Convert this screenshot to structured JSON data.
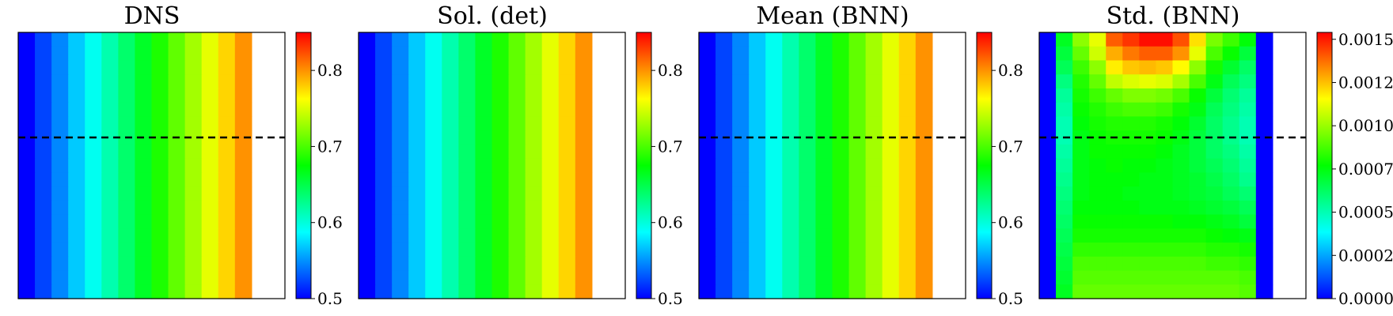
{
  "chart_data": [
    {
      "type": "heatmap",
      "title": "DNS",
      "colormap": "jet",
      "grid": {
        "rows": 19,
        "cols": 16,
        "filled_rows": 19,
        "filled_cols": 14
      },
      "columns_only": true,
      "column_values": [
        0.5,
        0.5231,
        0.5462,
        0.5692,
        0.5923,
        0.6154,
        0.6385,
        0.6615,
        0.6846,
        0.7077,
        0.7308,
        0.7538,
        0.7769,
        0.8
      ],
      "dashed_line_row": 7.5,
      "colorbar": {
        "min": 0.5,
        "max": 0.85,
        "ticks": [
          "0.5",
          "0.6",
          "0.7",
          "0.8"
        ],
        "tick_values": [
          0.5,
          0.6,
          0.7,
          0.8
        ]
      }
    },
    {
      "type": "heatmap",
      "title": "Sol. (det)",
      "colormap": "jet",
      "grid": {
        "rows": 19,
        "cols": 16,
        "filled_rows": 19,
        "filled_cols": 14
      },
      "columns_only": true,
      "column_values": [
        0.5,
        0.5231,
        0.5462,
        0.5692,
        0.5923,
        0.6154,
        0.6385,
        0.6615,
        0.6846,
        0.7077,
        0.7308,
        0.7538,
        0.7769,
        0.8
      ],
      "colorbar": {
        "min": 0.5,
        "max": 0.85,
        "ticks": [
          "0.5",
          "0.6",
          "0.7",
          "0.8"
        ],
        "tick_values": [
          0.5,
          0.6,
          0.7,
          0.8
        ]
      }
    },
    {
      "type": "heatmap",
      "title": "Mean (BNN)",
      "colormap": "jet",
      "grid": {
        "rows": 19,
        "cols": 16,
        "filled_rows": 19,
        "filled_cols": 14
      },
      "columns_only": true,
      "column_values": [
        0.5,
        0.5231,
        0.5462,
        0.5692,
        0.5923,
        0.6154,
        0.6385,
        0.6615,
        0.6846,
        0.7077,
        0.7308,
        0.7538,
        0.7769,
        0.8
      ],
      "dashed_line_row": 7.5,
      "colorbar": {
        "min": 0.5,
        "max": 0.85,
        "ticks": [
          "0.5",
          "0.6",
          "0.7",
          "0.8"
        ],
        "tick_values": [
          0.5,
          0.6,
          0.7,
          0.8
        ]
      }
    },
    {
      "type": "heatmap",
      "title": "Std. (BNN)",
      "colormap": "jet",
      "grid": {
        "rows": 19,
        "cols": 16,
        "filled_rows": 19,
        "filled_cols": 14
      },
      "columns_only": false,
      "values": [
        [
          0,
          0.00072,
          0.00098,
          0.00112,
          0.0014,
          0.00146,
          0.00152,
          0.00152,
          0.00142,
          0.0012,
          0.00095,
          0.00086,
          0.00076,
          0
        ],
        [
          0,
          0.00068,
          0.00092,
          0.00108,
          0.00128,
          0.00136,
          0.0014,
          0.0014,
          0.00132,
          0.00112,
          0.00088,
          0.00078,
          0.00068,
          0
        ],
        [
          0,
          0.00064,
          0.00086,
          0.00098,
          0.00118,
          0.00124,
          0.00126,
          0.00124,
          0.00116,
          0.00098,
          0.0008,
          0.0007,
          0.00062,
          0
        ],
        [
          0,
          0.00058,
          0.00082,
          0.00092,
          0.00106,
          0.0011,
          0.00112,
          0.0011,
          0.00102,
          0.00088,
          0.00074,
          0.00064,
          0.00058,
          0
        ],
        [
          0,
          0.00054,
          0.0008,
          0.00086,
          0.00092,
          0.00096,
          0.00096,
          0.00094,
          0.00088,
          0.00078,
          0.00068,
          0.0006,
          0.00054,
          0
        ],
        [
          0,
          0.00052,
          0.00078,
          0.00082,
          0.00086,
          0.00088,
          0.00088,
          0.00086,
          0.0008,
          0.00074,
          0.00064,
          0.00058,
          0.00052,
          0
        ],
        [
          0,
          0.0005,
          0.00076,
          0.0008,
          0.00082,
          0.00082,
          0.00082,
          0.0008,
          0.00076,
          0.0007,
          0.00062,
          0.00056,
          0.0005,
          0
        ],
        [
          0,
          0.0005,
          0.00074,
          0.00078,
          0.0008,
          0.0008,
          0.0008,
          0.00078,
          0.00074,
          0.00068,
          0.00062,
          0.00056,
          0.0005,
          0
        ],
        [
          0,
          0.00052,
          0.00074,
          0.00078,
          0.00078,
          0.00078,
          0.00078,
          0.00076,
          0.00072,
          0.00068,
          0.00062,
          0.00058,
          0.00052,
          0
        ],
        [
          0,
          0.00054,
          0.00074,
          0.00076,
          0.00078,
          0.00076,
          0.00076,
          0.00074,
          0.00072,
          0.00068,
          0.00064,
          0.0006,
          0.00054,
          0
        ],
        [
          0,
          0.00056,
          0.00074,
          0.00076,
          0.00076,
          0.00076,
          0.00074,
          0.00074,
          0.00072,
          0.0007,
          0.00066,
          0.00062,
          0.00056,
          0
        ],
        [
          0,
          0.00058,
          0.00074,
          0.00076,
          0.00076,
          0.00074,
          0.00074,
          0.00074,
          0.00072,
          0.0007,
          0.00068,
          0.00064,
          0.0006,
          0
        ],
        [
          0,
          0.0006,
          0.00076,
          0.00076,
          0.00076,
          0.00076,
          0.00074,
          0.00074,
          0.00074,
          0.00072,
          0.0007,
          0.00068,
          0.00064,
          0
        ],
        [
          0,
          0.00062,
          0.00078,
          0.00078,
          0.00078,
          0.00078,
          0.00078,
          0.00078,
          0.00076,
          0.00076,
          0.00074,
          0.00072,
          0.00068,
          0
        ],
        [
          0,
          0.00064,
          0.0008,
          0.0008,
          0.0008,
          0.0008,
          0.0008,
          0.0008,
          0.0008,
          0.0008,
          0.00078,
          0.00076,
          0.00074,
          0
        ],
        [
          0,
          0.00066,
          0.00084,
          0.00084,
          0.00084,
          0.00084,
          0.00084,
          0.00084,
          0.00084,
          0.00084,
          0.00082,
          0.00082,
          0.0008,
          0
        ],
        [
          0,
          0.00068,
          0.00088,
          0.00088,
          0.00088,
          0.00088,
          0.00088,
          0.00088,
          0.00088,
          0.00088,
          0.00086,
          0.00086,
          0.00084,
          0
        ],
        [
          0,
          0.0007,
          0.0009,
          0.0009,
          0.0009,
          0.0009,
          0.0009,
          0.0009,
          0.0009,
          0.0009,
          0.0009,
          0.0009,
          0.00088,
          0
        ],
        [
          0,
          0.00072,
          0.00092,
          0.00092,
          0.00092,
          0.00092,
          0.00092,
          0.00092,
          0.00092,
          0.00092,
          0.00092,
          0.00092,
          0.0009,
          0
        ]
      ],
      "dashed_line_row": 7.5,
      "colorbar": {
        "min": 0,
        "max": 0.00154,
        "ticks": [
          "0.00000",
          "0.00025",
          "0.00050",
          "0.00075",
          "0.00100",
          "0.00125",
          "0.00150"
        ],
        "tick_values": [
          0,
          0.00025,
          0.0005,
          0.00075,
          0.001,
          0.00125,
          0.0015
        ]
      }
    }
  ]
}
